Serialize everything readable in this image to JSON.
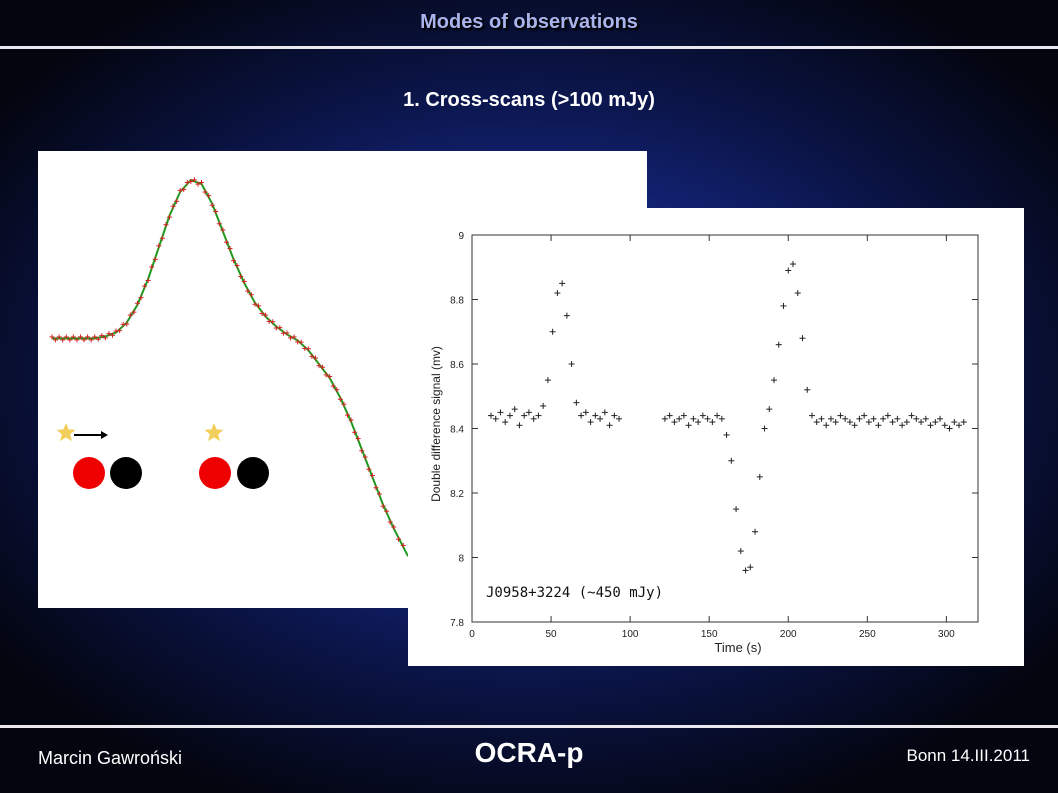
{
  "slide": {
    "title": "Modes of observations",
    "subtitle": "1. Cross-scans (>100 mJy)"
  },
  "footer": {
    "author": "Marcin Gawroński",
    "project": "OCRA-p",
    "place_date": "Bonn 14.III.2011"
  },
  "colors": {
    "data_marker": "#d42222",
    "fit_line": "#1f9a1f",
    "star": "#f2cf5a",
    "beam_a": "#ee0000",
    "beam_b": "#000000",
    "plot_points": "#222222"
  },
  "diagram": {
    "beam_icons": [
      "star-icon",
      "red-circle",
      "black-circle"
    ],
    "arrow": "right-arrow-icon"
  },
  "chart_data": [
    {
      "type": "line",
      "title": "",
      "xlabel": "",
      "ylabel": "",
      "axes_visible": false,
      "series": [
        {
          "kind": "points",
          "marker": "+",
          "x": [
            0,
            0.03,
            0.06,
            0.09,
            0.12,
            0.15,
            0.18,
            0.21,
            0.24,
            0.27,
            0.3,
            0.33,
            0.36,
            0.39,
            0.42,
            0.45,
            0.48,
            0.51,
            0.54,
            0.57,
            0.6,
            0.63,
            0.66,
            0.69,
            0.72,
            0.75,
            0.78,
            0.81,
            0.84,
            0.87,
            0.9,
            0.93,
            0.96,
            1.0
          ],
          "y": [
            0.2,
            0.2,
            0.2,
            0.2,
            0.2,
            0.21,
            0.23,
            0.28,
            0.37,
            0.5,
            0.66,
            0.82,
            0.94,
            1.0,
            0.98,
            0.88,
            0.74,
            0.6,
            0.48,
            0.38,
            0.31,
            0.26,
            0.22,
            0.19,
            0.14,
            0.07,
            0.0,
            -0.1,
            -0.22,
            -0.36,
            -0.5,
            -0.64,
            -0.76,
            -0.9
          ]
        },
        {
          "kind": "fit",
          "x": [
            0,
            0.03,
            0.06,
            0.09,
            0.12,
            0.15,
            0.18,
            0.21,
            0.24,
            0.27,
            0.3,
            0.33,
            0.36,
            0.39,
            0.42,
            0.45,
            0.48,
            0.51,
            0.54,
            0.57,
            0.6,
            0.63,
            0.66,
            0.69,
            0.72,
            0.75,
            0.78,
            0.81,
            0.84,
            0.87,
            0.9,
            0.93,
            0.96,
            1.0
          ],
          "y": [
            0.2,
            0.2,
            0.2,
            0.2,
            0.2,
            0.21,
            0.23,
            0.28,
            0.37,
            0.5,
            0.66,
            0.82,
            0.94,
            1.0,
            0.98,
            0.88,
            0.74,
            0.6,
            0.48,
            0.38,
            0.31,
            0.26,
            0.22,
            0.19,
            0.14,
            0.07,
            0.0,
            -0.1,
            -0.22,
            -0.36,
            -0.5,
            -0.64,
            -0.76,
            -0.9
          ]
        }
      ]
    },
    {
      "type": "scatter",
      "title": "",
      "xlabel": "Time (s)",
      "ylabel": "Double difference signal (mv)",
      "xlim": [
        0,
        320
      ],
      "ylim": [
        7.8,
        9.0
      ],
      "xticks": [
        0,
        50,
        100,
        150,
        200,
        250,
        300
      ],
      "yticks": [
        7.8,
        8.0,
        8.2,
        8.4,
        8.6,
        8.8,
        9.0
      ],
      "annotation": "J0958+3224 (~450 mJy)",
      "grid": false,
      "marker": "+",
      "series": [
        {
          "x": [
            12,
            15,
            18,
            21,
            24,
            27,
            30,
            33,
            36,
            39,
            42,
            45,
            48,
            51,
            54,
            57,
            60,
            63,
            66,
            69,
            72,
            75,
            78,
            81,
            84,
            87,
            90,
            93,
            122,
            125,
            128,
            131,
            134,
            137,
            140,
            143,
            146,
            149,
            152,
            155,
            158,
            161,
            164,
            167,
            170,
            173,
            176,
            179,
            182,
            185,
            188,
            191,
            194,
            197,
            200,
            203,
            206,
            209,
            212,
            215,
            218,
            221,
            224,
            227,
            230,
            233,
            236,
            239,
            242,
            245,
            248,
            251,
            254,
            257,
            260,
            263,
            266,
            269,
            272,
            275,
            278,
            281,
            284,
            287,
            290,
            293,
            296,
            299,
            302,
            305,
            308,
            311
          ],
          "y": [
            8.44,
            8.43,
            8.45,
            8.42,
            8.44,
            8.46,
            8.41,
            8.44,
            8.45,
            8.43,
            8.44,
            8.47,
            8.55,
            8.7,
            8.82,
            8.85,
            8.75,
            8.6,
            8.48,
            8.44,
            8.45,
            8.42,
            8.44,
            8.43,
            8.45,
            8.41,
            8.44,
            8.43,
            8.43,
            8.44,
            8.42,
            8.43,
            8.44,
            8.41,
            8.43,
            8.42,
            8.44,
            8.43,
            8.42,
            8.44,
            8.43,
            8.38,
            8.3,
            8.15,
            8.02,
            7.96,
            7.97,
            8.08,
            8.25,
            8.4,
            8.46,
            8.55,
            8.66,
            8.78,
            8.89,
            8.91,
            8.82,
            8.68,
            8.52,
            8.44,
            8.42,
            8.43,
            8.41,
            8.43,
            8.42,
            8.44,
            8.43,
            8.42,
            8.41,
            8.43,
            8.44,
            8.42,
            8.43,
            8.41,
            8.43,
            8.44,
            8.42,
            8.43,
            8.41,
            8.42,
            8.44,
            8.43,
            8.42,
            8.43,
            8.41,
            8.42,
            8.43,
            8.41,
            8.4,
            8.42,
            8.41,
            8.42
          ]
        }
      ]
    }
  ]
}
